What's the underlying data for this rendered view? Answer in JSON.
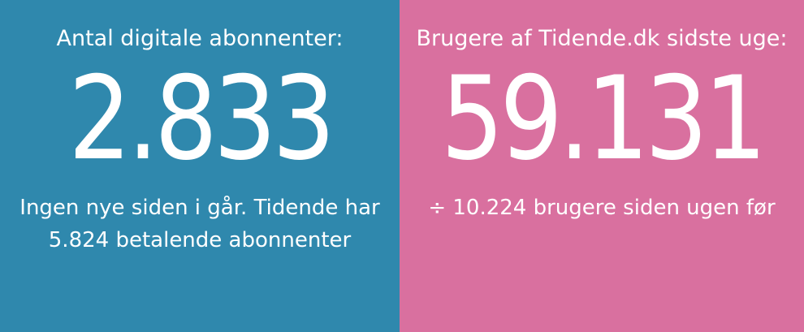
{
  "left_panel": {
    "title": "Antal digitale abonnenter:",
    "value": "2.833",
    "note_line1": "Ingen nye siden i går. Tidende har",
    "note_line2": "5.824 betalende abonnenter",
    "background_color": "#2f88ad"
  },
  "right_panel": {
    "title": "Brugere af Tidende.dk sidste uge:",
    "value": "59.131",
    "note_line1": "÷ 10.224 brugere siden ugen før",
    "background_color": "#d9709f"
  },
  "text_color": "#ffffff"
}
